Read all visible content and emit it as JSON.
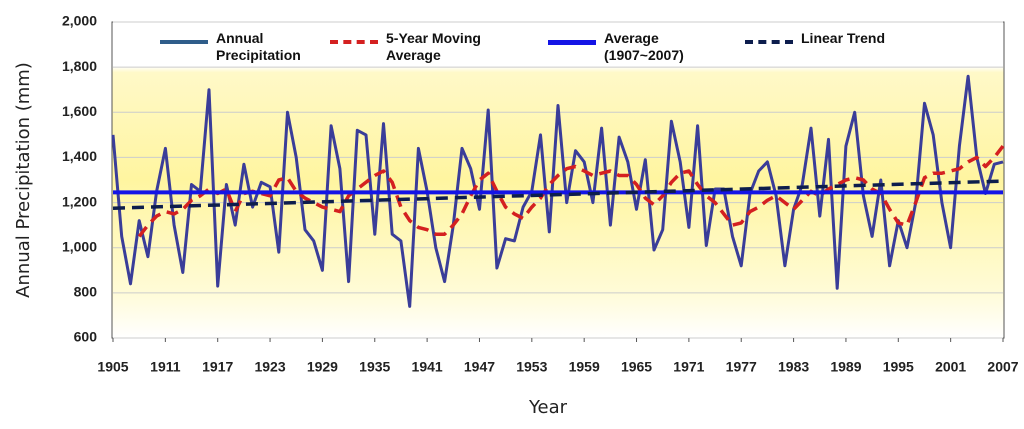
{
  "chart_data": {
    "type": "line",
    "x_label": "Year",
    "y_label": "Annual Precipitation (mm)",
    "xlim": [
      1905,
      2007
    ],
    "xticks": [
      1905,
      1911,
      1917,
      1923,
      1929,
      1935,
      1941,
      1947,
      1953,
      1959,
      1965,
      1971,
      1977,
      1983,
      1989,
      1995,
      2001,
      2007
    ],
    "ylim": [
      600,
      2000
    ],
    "yticks": [
      600,
      800,
      {
        "value": 1000,
        "label": "1,000"
      },
      {
        "value": 1200,
        "label": "1,200"
      },
      {
        "value": 1400,
        "label": "1,400"
      },
      {
        "value": 1600,
        "label": "1,600"
      },
      {
        "value": 1800,
        "label": "1,800"
      },
      {
        "value": 2000,
        "label": "2,000"
      }
    ],
    "grid": true,
    "x": [
      1905,
      1906,
      1907,
      1908,
      1909,
      1910,
      1911,
      1912,
      1913,
      1914,
      1915,
      1916,
      1917,
      1918,
      1919,
      1920,
      1921,
      1922,
      1923,
      1924,
      1925,
      1926,
      1927,
      1928,
      1929,
      1930,
      1931,
      1932,
      1933,
      1934,
      1935,
      1936,
      1937,
      1938,
      1939,
      1940,
      1941,
      1942,
      1943,
      1944,
      1945,
      1946,
      1947,
      1948,
      1949,
      1950,
      1951,
      1952,
      1953,
      1954,
      1955,
      1956,
      1957,
      1958,
      1959,
      1960,
      1961,
      1962,
      1963,
      1964,
      1965,
      1966,
      1967,
      1968,
      1969,
      1970,
      1971,
      1972,
      1973,
      1974,
      1975,
      1976,
      1977,
      1978,
      1979,
      1980,
      1981,
      1982,
      1983,
      1984,
      1985,
      1986,
      1987,
      1988,
      1989,
      1990,
      1991,
      1992,
      1993,
      1994,
      1995,
      1996,
      1997,
      1998,
      1999,
      2000,
      2001,
      2002,
      2003,
      2004,
      2005,
      2006,
      2007
    ],
    "series": [
      {
        "name": "Annual Precipitation",
        "color": "#3a3d99",
        "legend_color": "#2f5d8a",
        "dash": false,
        "width": 3,
        "values": [
          1500,
          1050,
          840,
          1120,
          960,
          1250,
          1440,
          1100,
          890,
          1280,
          1250,
          1700,
          830,
          1280,
          1100,
          1370,
          1180,
          1290,
          1270,
          980,
          1600,
          1400,
          1080,
          1030,
          900,
          1540,
          1350,
          850,
          1520,
          1500,
          1060,
          1550,
          1060,
          1030,
          740,
          1440,
          1250,
          1000,
          850,
          1100,
          1440,
          1350,
          1170,
          1610,
          910,
          1040,
          1030,
          1180,
          1250,
          1500,
          1070,
          1630,
          1200,
          1430,
          1380,
          1200,
          1530,
          1100,
          1490,
          1380,
          1170,
          1390,
          990,
          1080,
          1560,
          1380,
          1090,
          1540,
          1010,
          1260,
          1260,
          1050,
          920,
          1240,
          1340,
          1380,
          1230,
          920,
          1170,
          1280,
          1530,
          1140,
          1480,
          820,
          1450,
          1600,
          1230,
          1050,
          1300,
          920,
          1120,
          1000,
          1200,
          1640,
          1500,
          1200,
          1000,
          1450,
          1760,
          1400,
          1240,
          1370,
          1380
        ]
      },
      {
        "name": "5-Year Moving Average",
        "color": "#d42020",
        "dash": true,
        "width": 3.5,
        "values": [
          null,
          null,
          null,
          1050,
          1100,
          1140,
          1160,
          1150,
          1170,
          1210,
          1230,
          1260,
          1240,
          1260,
          1160,
          1240,
          1250,
          1240,
          1230,
          1300,
          1310,
          1250,
          1220,
          1200,
          1180,
          1170,
          1160,
          1230,
          1260,
          1290,
          1320,
          1340,
          1290,
          1180,
          1120,
          1090,
          1080,
          1060,
          1060,
          1100,
          1150,
          1230,
          1300,
          1330,
          1250,
          1180,
          1150,
          1130,
          1180,
          1220,
          1280,
          1320,
          1350,
          1360,
          1340,
          1320,
          1330,
          1340,
          1320,
          1320,
          1280,
          1220,
          1190,
          1230,
          1290,
          1330,
          1340,
          1280,
          1230,
          1200,
          1150,
          1100,
          1110,
          1160,
          1180,
          1210,
          1230,
          1200,
          1170,
          1210,
          1250,
          1230,
          1260,
          1280,
          1300,
          1310,
          1300,
          1260,
          1240,
          1170,
          1110,
          1100,
          1200,
          1310,
          1330,
          1330,
          1340,
          1350,
          1380,
          1400,
          1360,
          1400,
          1450
        ]
      },
      {
        "name": "Average (1907~2007)",
        "color": "#1414e6",
        "dash": false,
        "width": 4,
        "x": [
          1905,
          2007
        ],
        "values": [
          1245,
          1245
        ]
      },
      {
        "name": "Linear Trend",
        "color": "#0d1d4d",
        "dash": true,
        "width": 3.5,
        "x": [
          1905,
          2007
        ],
        "values": [
          1175,
          1295
        ]
      }
    ]
  }
}
